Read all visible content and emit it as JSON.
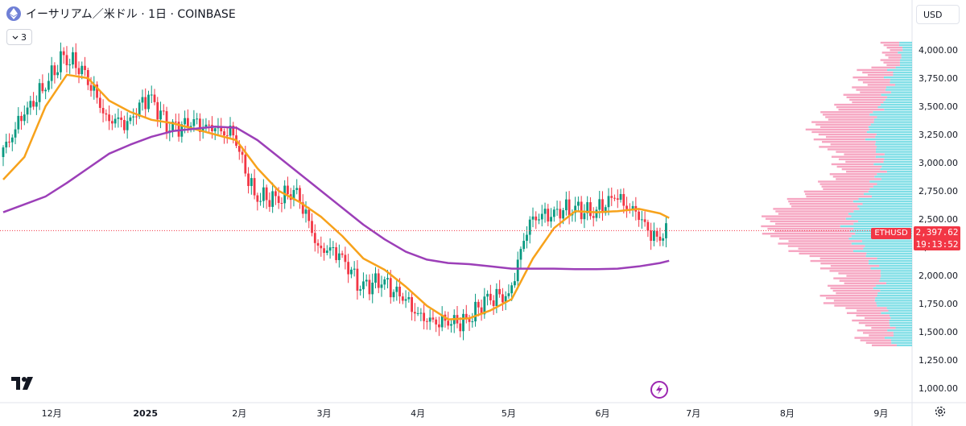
{
  "header": {
    "title": "イーサリアム／米ドル · 1日 · COINBASE",
    "indicator_count": "3",
    "currency": "USD"
  },
  "price_tag": {
    "symbol": "ETHUSD",
    "price": "2,397.62",
    "countdown": "19:13:52"
  },
  "icons": [
    "ethereum-coin-icon",
    "chevron-down-icon",
    "tradingview-logo-icon",
    "lightning-icon",
    "gear-icon"
  ],
  "colors": {
    "up": "#089981",
    "down": "#f23645",
    "ma_short": "#f7a21b",
    "ma_long": "#9c3fb8",
    "vp_up": "#54d3dd",
    "vp_down": "#f48fb1"
  },
  "chart_data": {
    "type": "candlestick",
    "x_axis_labels": [
      "12月",
      "2025",
      "2月",
      "3月",
      "4月",
      "5月",
      "6月",
      "7月",
      "8月",
      "9月"
    ],
    "y_ticks": [
      "1,000.00",
      "1,250.00",
      "1,500.00",
      "1,750.00",
      "2,000.00",
      "2,250.00",
      "2,500.00",
      "2,750.00",
      "3,000.00",
      "3,250.00",
      "3,500.00",
      "3,750.00",
      "4,000.00"
    ],
    "ylim": [
      950,
      4100
    ],
    "last_price": 2397.62,
    "x": [
      "2024-11-15",
      "2024-11-22",
      "2024-11-29",
      "2024-12-06",
      "2024-12-13",
      "2024-12-20",
      "2024-12-27",
      "2025-01-03",
      "2025-01-10",
      "2025-01-17",
      "2025-01-24",
      "2025-01-31",
      "2025-02-07",
      "2025-02-14",
      "2025-02-21",
      "2025-02-28",
      "2025-03-07",
      "2025-03-14",
      "2025-03-21",
      "2025-03-28",
      "2025-04-04",
      "2025-04-11",
      "2025-04-18",
      "2025-04-25",
      "2025-05-02",
      "2025-05-09",
      "2025-05-16",
      "2025-05-23",
      "2025-05-30",
      "2025-06-06",
      "2025-06-13",
      "2025-06-20",
      "2025-06-23"
    ],
    "series": [
      {
        "name": "ETHUSD",
        "close": [
          3050,
          3400,
          3650,
          3950,
          3800,
          3400,
          3350,
          3600,
          3300,
          3350,
          3300,
          3250,
          2700,
          2680,
          2750,
          2250,
          2200,
          1900,
          1950,
          1800,
          1600,
          1580,
          1590,
          1800,
          1820,
          2500,
          2550,
          2600,
          2550,
          2700,
          2550,
          2300,
          2397.62
        ]
      },
      {
        "name": "MA short",
        "values": [
          2850,
          3050,
          3500,
          3780,
          3750,
          3550,
          3450,
          3380,
          3350,
          3300,
          3250,
          3200,
          2950,
          2750,
          2650,
          2520,
          2350,
          2150,
          2050,
          1900,
          1730,
          1610,
          1620,
          1690,
          1790,
          2150,
          2420,
          2570,
          2560,
          2570,
          2590,
          2550,
          2510
        ]
      },
      {
        "name": "MA long",
        "values": [
          2560,
          2630,
          2700,
          2820,
          2950,
          3080,
          3160,
          3230,
          3280,
          3300,
          3320,
          3310,
          3200,
          3050,
          2900,
          2750,
          2600,
          2450,
          2320,
          2210,
          2140,
          2110,
          2100,
          2080,
          2060,
          2060,
          2060,
          2055,
          2055,
          2060,
          2080,
          2110,
          2130
        ]
      }
    ]
  }
}
